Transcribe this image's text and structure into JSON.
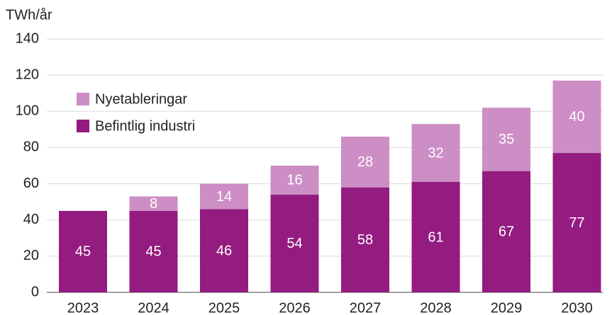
{
  "chart_data": {
    "type": "stacked_bar",
    "y_label": "TWh/år",
    "categories": [
      "2023",
      "2024",
      "2025",
      "2026",
      "2027",
      "2028",
      "2029",
      "2030"
    ],
    "series": [
      {
        "name": "Befintlig industri",
        "color": "#941b80",
        "values": [
          45,
          45,
          46,
          54,
          58,
          61,
          67,
          77
        ]
      },
      {
        "name": "Nyetableringar",
        "color": "#cc8ec4",
        "values": [
          null,
          8,
          14,
          16,
          28,
          32,
          35,
          40
        ]
      }
    ],
    "ylim": [
      0,
      140
    ],
    "yticks": [
      0,
      20,
      40,
      60,
      80,
      100,
      120,
      140
    ],
    "grid": true,
    "legend": "upper left"
  }
}
